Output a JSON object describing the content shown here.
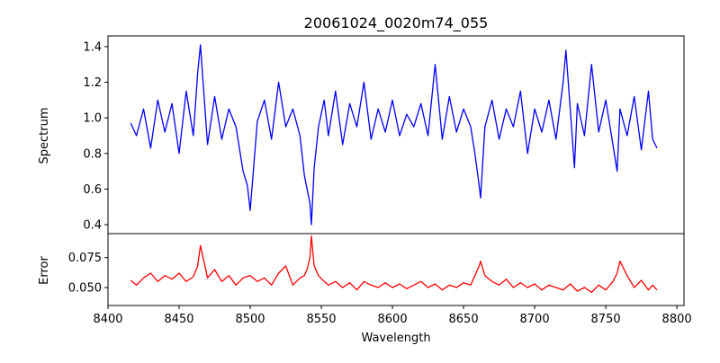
{
  "chart_data": {
    "type": "line",
    "title": "20061024_0020m74_055",
    "xlabel": "Wavelength",
    "xlim": [
      8400,
      8805
    ],
    "xticks": [
      8400,
      8450,
      8500,
      8550,
      8600,
      8650,
      8700,
      8750,
      8800
    ],
    "panels": [
      {
        "name": "spectrum",
        "ylabel": "Spectrum",
        "ylim": [
          0.35,
          1.46
        ],
        "yticks": [
          0.4,
          0.6,
          0.8,
          1.0,
          1.2,
          1.4
        ],
        "ytick_labels": [
          "0.4",
          "0.6",
          "0.8",
          "1.0",
          "1.2",
          "1.4"
        ],
        "color": "#0000ff",
        "x": [
          8416,
          8420,
          8425,
          8430,
          8435,
          8440,
          8445,
          8450,
          8455,
          8460,
          8463,
          8465,
          8470,
          8475,
          8480,
          8485,
          8490,
          8495,
          8498,
          8500,
          8505,
          8510,
          8515,
          8520,
          8525,
          8530,
          8535,
          8538,
          8540,
          8542,
          8543,
          8545,
          8548,
          8552,
          8555,
          8560,
          8565,
          8570,
          8575,
          8580,
          8585,
          8590,
          8595,
          8600,
          8605,
          8610,
          8615,
          8620,
          8625,
          8630,
          8635,
          8640,
          8645,
          8650,
          8655,
          8658,
          8661,
          8662,
          8665,
          8670,
          8675,
          8680,
          8685,
          8690,
          8695,
          8700,
          8705,
          8710,
          8715,
          8720,
          8722,
          8725,
          8728,
          8730,
          8735,
          8740,
          8745,
          8750,
          8755,
          8758,
          8760,
          8765,
          8770,
          8775,
          8780,
          8783,
          8786
        ],
        "y": [
          0.97,
          0.9,
          1.05,
          0.83,
          1.1,
          0.92,
          1.08,
          0.8,
          1.15,
          0.9,
          1.25,
          1.41,
          0.85,
          1.12,
          0.88,
          1.05,
          0.95,
          0.7,
          0.62,
          0.48,
          0.98,
          1.1,
          0.88,
          1.2,
          0.95,
          1.05,
          0.9,
          0.68,
          0.6,
          0.52,
          0.4,
          0.72,
          0.95,
          1.1,
          0.9,
          1.15,
          0.85,
          1.08,
          0.95,
          1.2,
          0.88,
          1.05,
          0.92,
          1.1,
          0.9,
          1.02,
          0.95,
          1.08,
          0.9,
          1.3,
          0.88,
          1.12,
          0.92,
          1.05,
          0.95,
          0.8,
          0.62,
          0.55,
          0.95,
          1.1,
          0.88,
          1.05,
          0.95,
          1.15,
          0.8,
          1.05,
          0.92,
          1.1,
          0.88,
          1.2,
          1.38,
          1.05,
          0.72,
          1.08,
          0.9,
          1.3,
          0.92,
          1.1,
          0.85,
          0.7,
          1.05,
          0.9,
          1.12,
          0.82,
          1.15,
          0.88,
          0.83
        ]
      },
      {
        "name": "error",
        "ylabel": "Error",
        "ylim": [
          0.035,
          0.095
        ],
        "yticks": [
          0.05,
          0.075
        ],
        "ytick_labels": [
          "0.050",
          "0.075"
        ],
        "color": "#ff0000",
        "x": [
          8416,
          8420,
          8425,
          8430,
          8435,
          8440,
          8445,
          8450,
          8455,
          8460,
          8463,
          8465,
          8470,
          8475,
          8480,
          8485,
          8490,
          8495,
          8500,
          8505,
          8510,
          8515,
          8520,
          8525,
          8530,
          8535,
          8538,
          8540,
          8542,
          8543,
          8545,
          8548,
          8552,
          8555,
          8560,
          8565,
          8570,
          8575,
          8580,
          8585,
          8590,
          8595,
          8600,
          8605,
          8610,
          8615,
          8620,
          8625,
          8630,
          8635,
          8640,
          8645,
          8650,
          8655,
          8658,
          8661,
          8662,
          8665,
          8670,
          8675,
          8680,
          8685,
          8690,
          8695,
          8700,
          8705,
          8710,
          8715,
          8720,
          8725,
          8730,
          8735,
          8740,
          8745,
          8750,
          8755,
          8758,
          8760,
          8765,
          8770,
          8775,
          8780,
          8783,
          8786
        ],
        "y": [
          0.056,
          0.052,
          0.058,
          0.062,
          0.055,
          0.06,
          0.057,
          0.062,
          0.055,
          0.059,
          0.068,
          0.085,
          0.058,
          0.065,
          0.055,
          0.06,
          0.052,
          0.058,
          0.06,
          0.055,
          0.058,
          0.052,
          0.062,
          0.068,
          0.052,
          0.058,
          0.06,
          0.065,
          0.075,
          0.093,
          0.068,
          0.06,
          0.055,
          0.052,
          0.055,
          0.05,
          0.054,
          0.048,
          0.055,
          0.052,
          0.05,
          0.054,
          0.05,
          0.053,
          0.049,
          0.052,
          0.055,
          0.05,
          0.053,
          0.048,
          0.052,
          0.05,
          0.054,
          0.052,
          0.06,
          0.068,
          0.072,
          0.06,
          0.055,
          0.052,
          0.057,
          0.05,
          0.054,
          0.05,
          0.053,
          0.048,
          0.052,
          0.05,
          0.048,
          0.053,
          0.047,
          0.05,
          0.046,
          0.052,
          0.048,
          0.055,
          0.062,
          0.072,
          0.06,
          0.05,
          0.056,
          0.048,
          0.052,
          0.048
        ]
      }
    ]
  }
}
